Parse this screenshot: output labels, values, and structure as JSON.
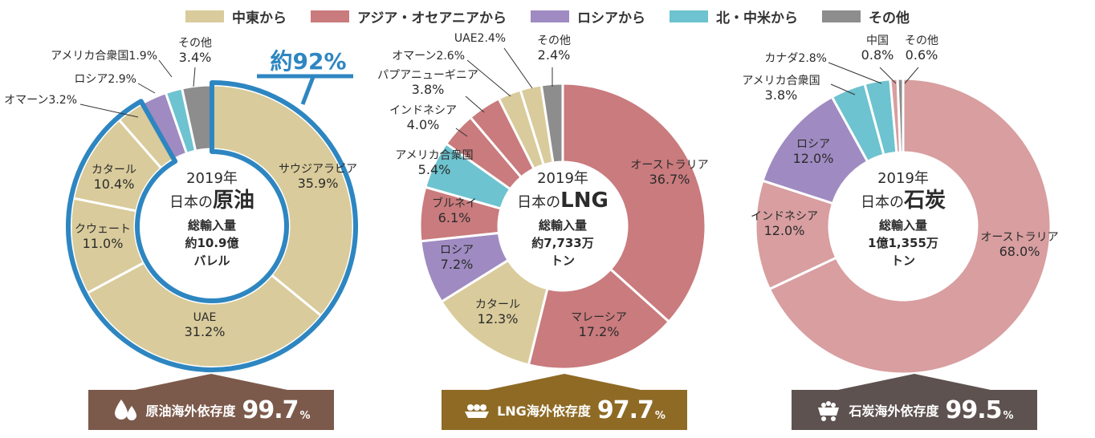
{
  "legend": [
    {
      "label": "中東から",
      "color": "#d9cb9b"
    },
    {
      "label": "アジア・オセアニアから",
      "color": "#c97b7d"
    },
    {
      "label": "ロシアから",
      "color": "#9f8bc2"
    },
    {
      "label": "北・中米から",
      "color": "#6dc3cf"
    },
    {
      "label": "その他",
      "color": "#8d8d8d"
    }
  ],
  "chart_data": [
    {
      "type": "pie",
      "center_lines": [
        "2019年",
        "日本の",
        "原油",
        "総輸入量",
        "約10.9億",
        "バレル"
      ],
      "highlight_label": "約92%",
      "dependency": {
        "label": "原油海外依存度",
        "value": "99.7",
        "unit": "%",
        "color": "#7c5a4b"
      },
      "slices": [
        {
          "name": "サウジアラビア",
          "value": 35.9,
          "value_label": "35.9%",
          "group": "middle_east",
          "color": "#d9cb9b"
        },
        {
          "name": "UAE",
          "value": 31.2,
          "value_label": "31.2%",
          "group": "middle_east",
          "color": "#d9cb9b"
        },
        {
          "name": "クウェート",
          "value": 11.0,
          "value_label": "11.0%",
          "group": "middle_east",
          "color": "#d9cb9b"
        },
        {
          "name": "カタール",
          "value": 10.4,
          "value_label": "10.4%",
          "group": "middle_east",
          "color": "#d9cb9b"
        },
        {
          "name": "オマーン",
          "value": 3.2,
          "value_label": "3.2%",
          "group": "middle_east",
          "color": "#d9cb9b"
        },
        {
          "name": "ロシア",
          "value": 2.9,
          "value_label": "2.9%",
          "group": "russia",
          "color": "#9f8bc2"
        },
        {
          "name": "アメリカ合衆国",
          "value": 1.9,
          "value_label": "1.9%",
          "group": "america",
          "color": "#6dc3cf"
        },
        {
          "name": "その他",
          "value": 3.4,
          "value_label": "3.4%",
          "group": "other",
          "color": "#8d8d8d"
        }
      ]
    },
    {
      "type": "pie",
      "center_lines": [
        "2019年",
        "日本の",
        "LNG",
        "総輸入量",
        "約7,733万",
        "トン"
      ],
      "dependency": {
        "label": "LNG海外依存度",
        "value": "97.7",
        "unit": "%",
        "color": "#8e6a25"
      },
      "slices": [
        {
          "name": "オーストラリア",
          "value": 36.7,
          "value_label": "36.7%",
          "group": "asia_oceania",
          "color": "#c97b7d"
        },
        {
          "name": "マレーシア",
          "value": 17.2,
          "value_label": "17.2%",
          "group": "asia_oceania",
          "color": "#c97b7d"
        },
        {
          "name": "カタール",
          "value": 12.3,
          "value_label": "12.3%",
          "group": "middle_east",
          "color": "#d9cb9b"
        },
        {
          "name": "ロシア",
          "value": 7.2,
          "value_label": "7.2%",
          "group": "russia",
          "color": "#9f8bc2"
        },
        {
          "name": "ブルネイ",
          "value": 6.1,
          "value_label": "6.1%",
          "group": "asia_oceania",
          "color": "#c97b7d"
        },
        {
          "name": "アメリカ合衆国",
          "value": 5.4,
          "value_label": "5.4%",
          "group": "america",
          "color": "#6dc3cf"
        },
        {
          "name": "インドネシア",
          "value": 4.0,
          "value_label": "4.0%",
          "group": "asia_oceania",
          "color": "#c97b7d"
        },
        {
          "name": "パプアニューギニア",
          "value": 3.8,
          "value_label": "3.8%",
          "group": "asia_oceania",
          "color": "#c97b7d"
        },
        {
          "name": "オマーン",
          "value": 2.6,
          "value_label": "2.6%",
          "group": "middle_east",
          "color": "#d9cb9b"
        },
        {
          "name": "UAE",
          "value": 2.4,
          "value_label": "2.4%",
          "group": "middle_east",
          "color": "#d9cb9b"
        },
        {
          "name": "その他",
          "value": 2.4,
          "value_label": "2.4%",
          "group": "other",
          "color": "#8d8d8d"
        }
      ]
    },
    {
      "type": "pie",
      "center_lines": [
        "2019年",
        "日本の",
        "石炭",
        "総輸入量",
        "1億1,355万",
        "トン"
      ],
      "dependency": {
        "label": "石炭海外依存度",
        "value": "99.5",
        "unit": "%",
        "color": "#5d524f"
      },
      "slices": [
        {
          "name": "オーストラリア",
          "value": 68.0,
          "value_label": "68.0%",
          "group": "asia_oceania",
          "color": "#d89ea0"
        },
        {
          "name": "インドネシア",
          "value": 12.0,
          "value_label": "12.0%",
          "group": "asia_oceania",
          "color": "#d89ea0"
        },
        {
          "name": "ロシア",
          "value": 12.0,
          "value_label": "12.0%",
          "group": "russia",
          "color": "#9f8bc2"
        },
        {
          "name": "アメリカ合衆国",
          "value": 3.8,
          "value_label": "3.8%",
          "group": "america",
          "color": "#6dc3cf"
        },
        {
          "name": "カナダ",
          "value": 2.8,
          "value_label": "2.8%",
          "group": "america",
          "color": "#6dc3cf"
        },
        {
          "name": "中国",
          "value": 0.8,
          "value_label": "0.8%",
          "group": "asia_oceania",
          "color": "#d89ea0"
        },
        {
          "name": "その他",
          "value": 0.6,
          "value_label": "0.6%",
          "group": "other",
          "color": "#8d8d8d"
        }
      ]
    }
  ]
}
